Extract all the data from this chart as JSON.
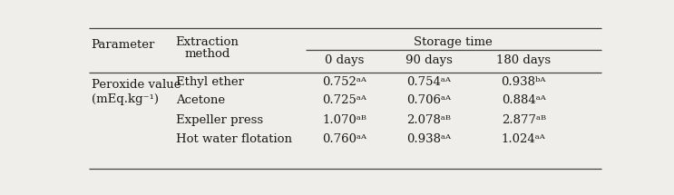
{
  "param_label_line1": "Peroxide value",
  "param_label_line2": "(mEq.kg⁻¹)",
  "col_headers_sub": [
    "0 days",
    "90 days",
    "180 days"
  ],
  "rows": [
    {
      "method": "Ethyl ether",
      "values": [
        "0.752ᵃᴬ",
        "0.754ᵃᴬ",
        "0.938ᵇᴬ"
      ]
    },
    {
      "method": "Acetone",
      "values": [
        "0.725ᵃᴬ",
        "0.706ᵃᴬ",
        "0.884ᵃᴬ"
      ]
    },
    {
      "method": "Expeller press",
      "values": [
        "1.070ᵃᴮ",
        "2.078ᵃᴮ",
        "2.877ᵃᴮ"
      ]
    },
    {
      "method": "Hot water flotation",
      "values": [
        "0.760ᵃᴬ",
        "0.938ᵃᴬ",
        "1.024ᵃᴬ"
      ]
    }
  ],
  "bg_color": "#f0eeea",
  "line_color": "#444444",
  "font_color": "#1a1a1a",
  "font_size": 9.5,
  "header_font_size": 9.5
}
